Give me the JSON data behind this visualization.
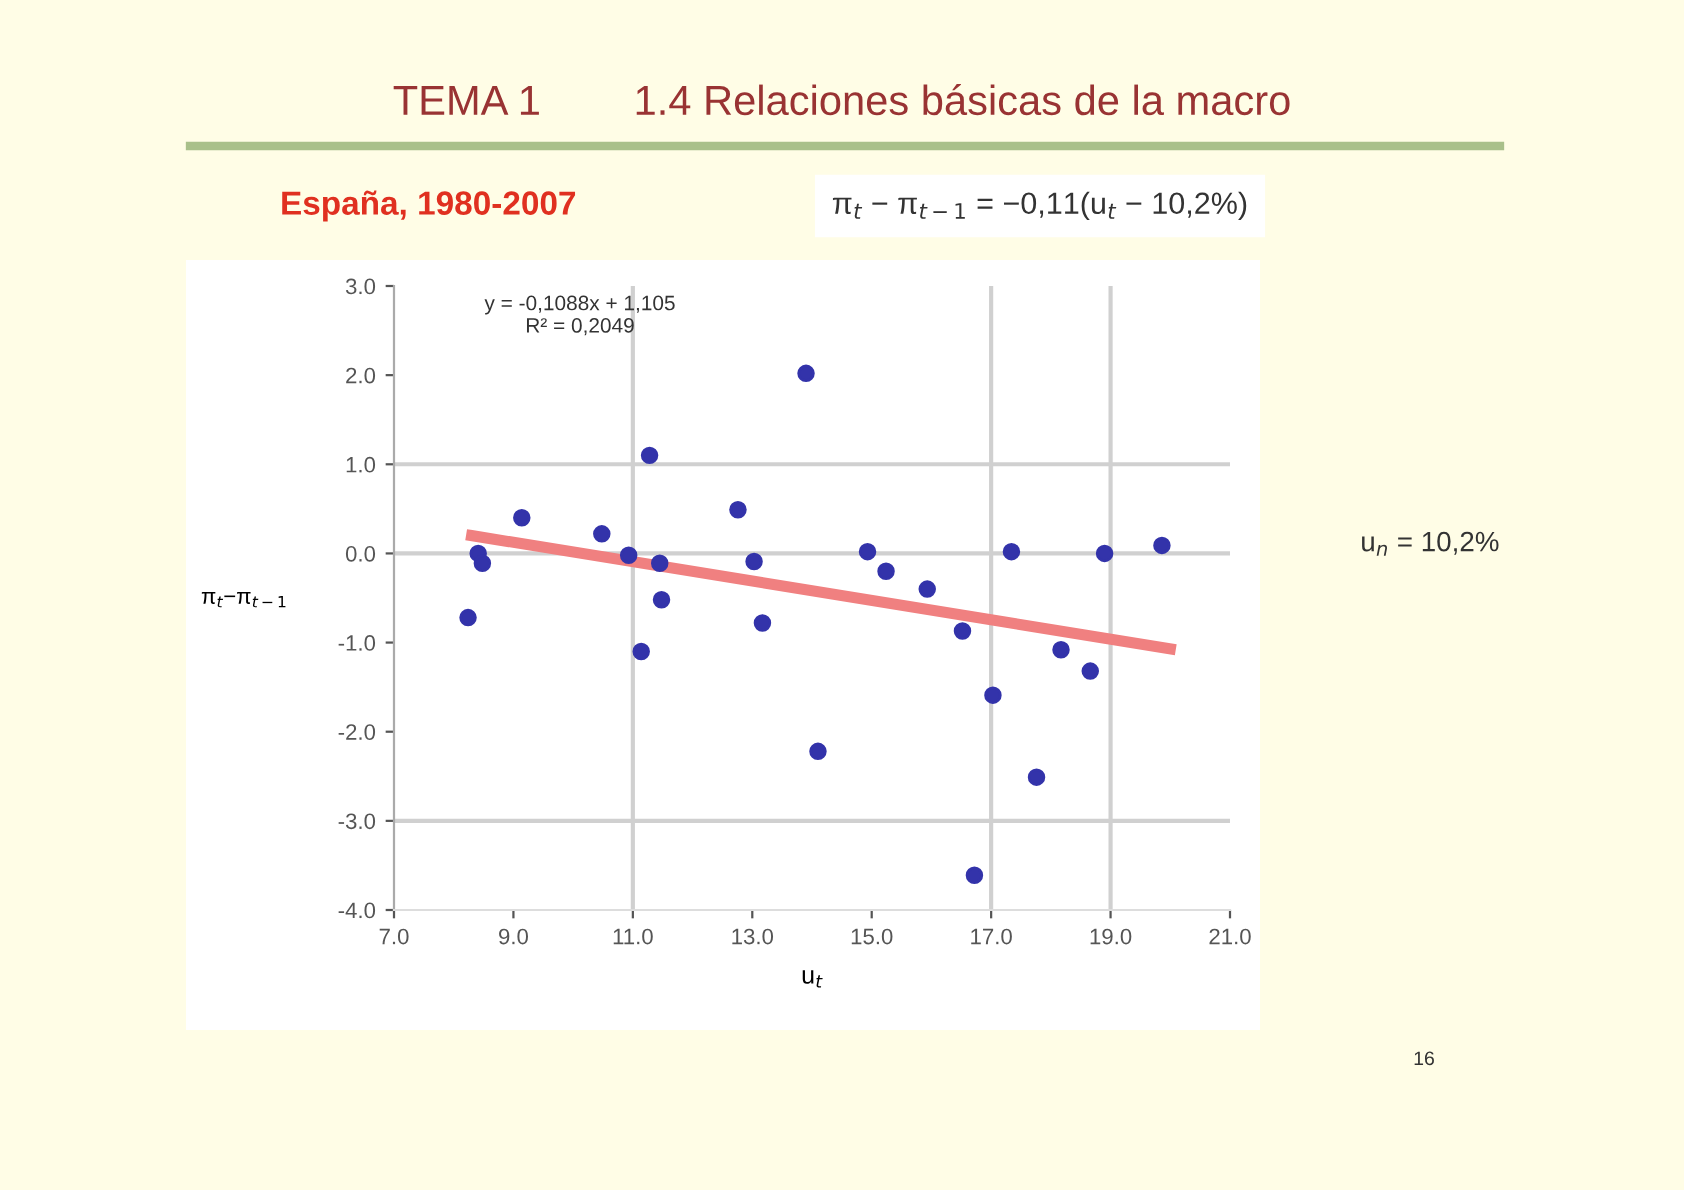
{
  "chart_data": {
    "type": "scatter",
    "title": "TEMA 1        1.4 Relaciones básicas de la macro",
    "subtitle": "España, 1980-2007",
    "xlabel": "u$_{t}$",
    "ylabel": "π$_{t}$−π$_{t−1}$",
    "annotations": [
      "π$_{t}$ − π$_{t−1}$ = −0,11(u$_{t}$ − 10,2%)",
      "u$_{n}$ = 10,2%",
      "y = -0,1088x + 1,105\nR² = 0,2049",
      "16"
    ],
    "series": [
      {
        "name": null,
        "color": "#3333aa",
        "marker": "circle",
        "x": [
          8.24,
          8.41,
          8.48,
          9.14,
          10.48,
          10.93,
          11.28,
          11.14,
          11.45,
          11.48,
          12.76,
          13.03,
          13.17,
          13.9,
          14.1,
          14.93,
          15.24,
          15.93,
          16.52,
          16.72,
          17.03,
          17.34,
          17.76,
          18.17,
          18.66,
          18.9,
          19.86
        ],
        "values": [
          -0.72,
          0.0,
          -0.11,
          0.4,
          0.22,
          -0.02,
          1.1,
          -1.1,
          -0.11,
          -0.52,
          0.49,
          -0.09,
          -0.78,
          2.02,
          -2.22,
          0.02,
          -0.2,
          -0.4,
          -0.87,
          -3.61,
          -1.59,
          0.02,
          -2.51,
          -1.08,
          -1.32,
          0.0,
          0.09
        ]
      },
      {
        "type": "line",
        "color": "#f08080",
        "x": [
          8.3,
          20.0
        ],
        "values": [
          0.2,
          -1.07
        ]
      }
    ],
    "xlim": [
      7,
      21
    ],
    "xticks": [
      {
        "value": 7,
        "label": "7.0"
      },
      {
        "value": 9,
        "label": "9.0"
      },
      {
        "value": 11,
        "label": "11.0"
      },
      {
        "value": 13,
        "label": "13.0"
      },
      {
        "value": 15,
        "label": "15.0"
      },
      {
        "value": 17,
        "label": "17.0"
      },
      {
        "value": 19,
        "label": "19.0"
      },
      {
        "value": 21,
        "label": "21.0"
      }
    ],
    "ylim": [
      -4,
      3
    ],
    "yticks": [
      {
        "value": -4,
        "label": "-4.0"
      },
      {
        "value": -3,
        "label": "-3.0"
      },
      {
        "value": -2,
        "label": "-2.0"
      },
      {
        "value": -1,
        "label": "-1.0"
      },
      {
        "value": 0,
        "label": "0.0"
      },
      {
        "value": 1,
        "label": "1.0"
      },
      {
        "value": 2,
        "label": "2.0"
      },
      {
        "value": 3,
        "label": "3.0"
      }
    ],
    "ref_lines": [
      {
        "axis": "x",
        "value": 11,
        "color": "#d0d0d0"
      },
      {
        "axis": "x",
        "value": 17,
        "color": "#d0d0d0"
      },
      {
        "axis": "x",
        "value": 19,
        "color": "#d0d0d0"
      },
      {
        "axis": "y",
        "value": 1,
        "color": "#d0d0d0"
      },
      {
        "axis": "y",
        "value": 0,
        "color": "#d0d0d0"
      },
      {
        "axis": "y",
        "value": -3,
        "color": "#d0d0d0"
      }
    ],
    "grid": false,
    "legend": false
  }
}
